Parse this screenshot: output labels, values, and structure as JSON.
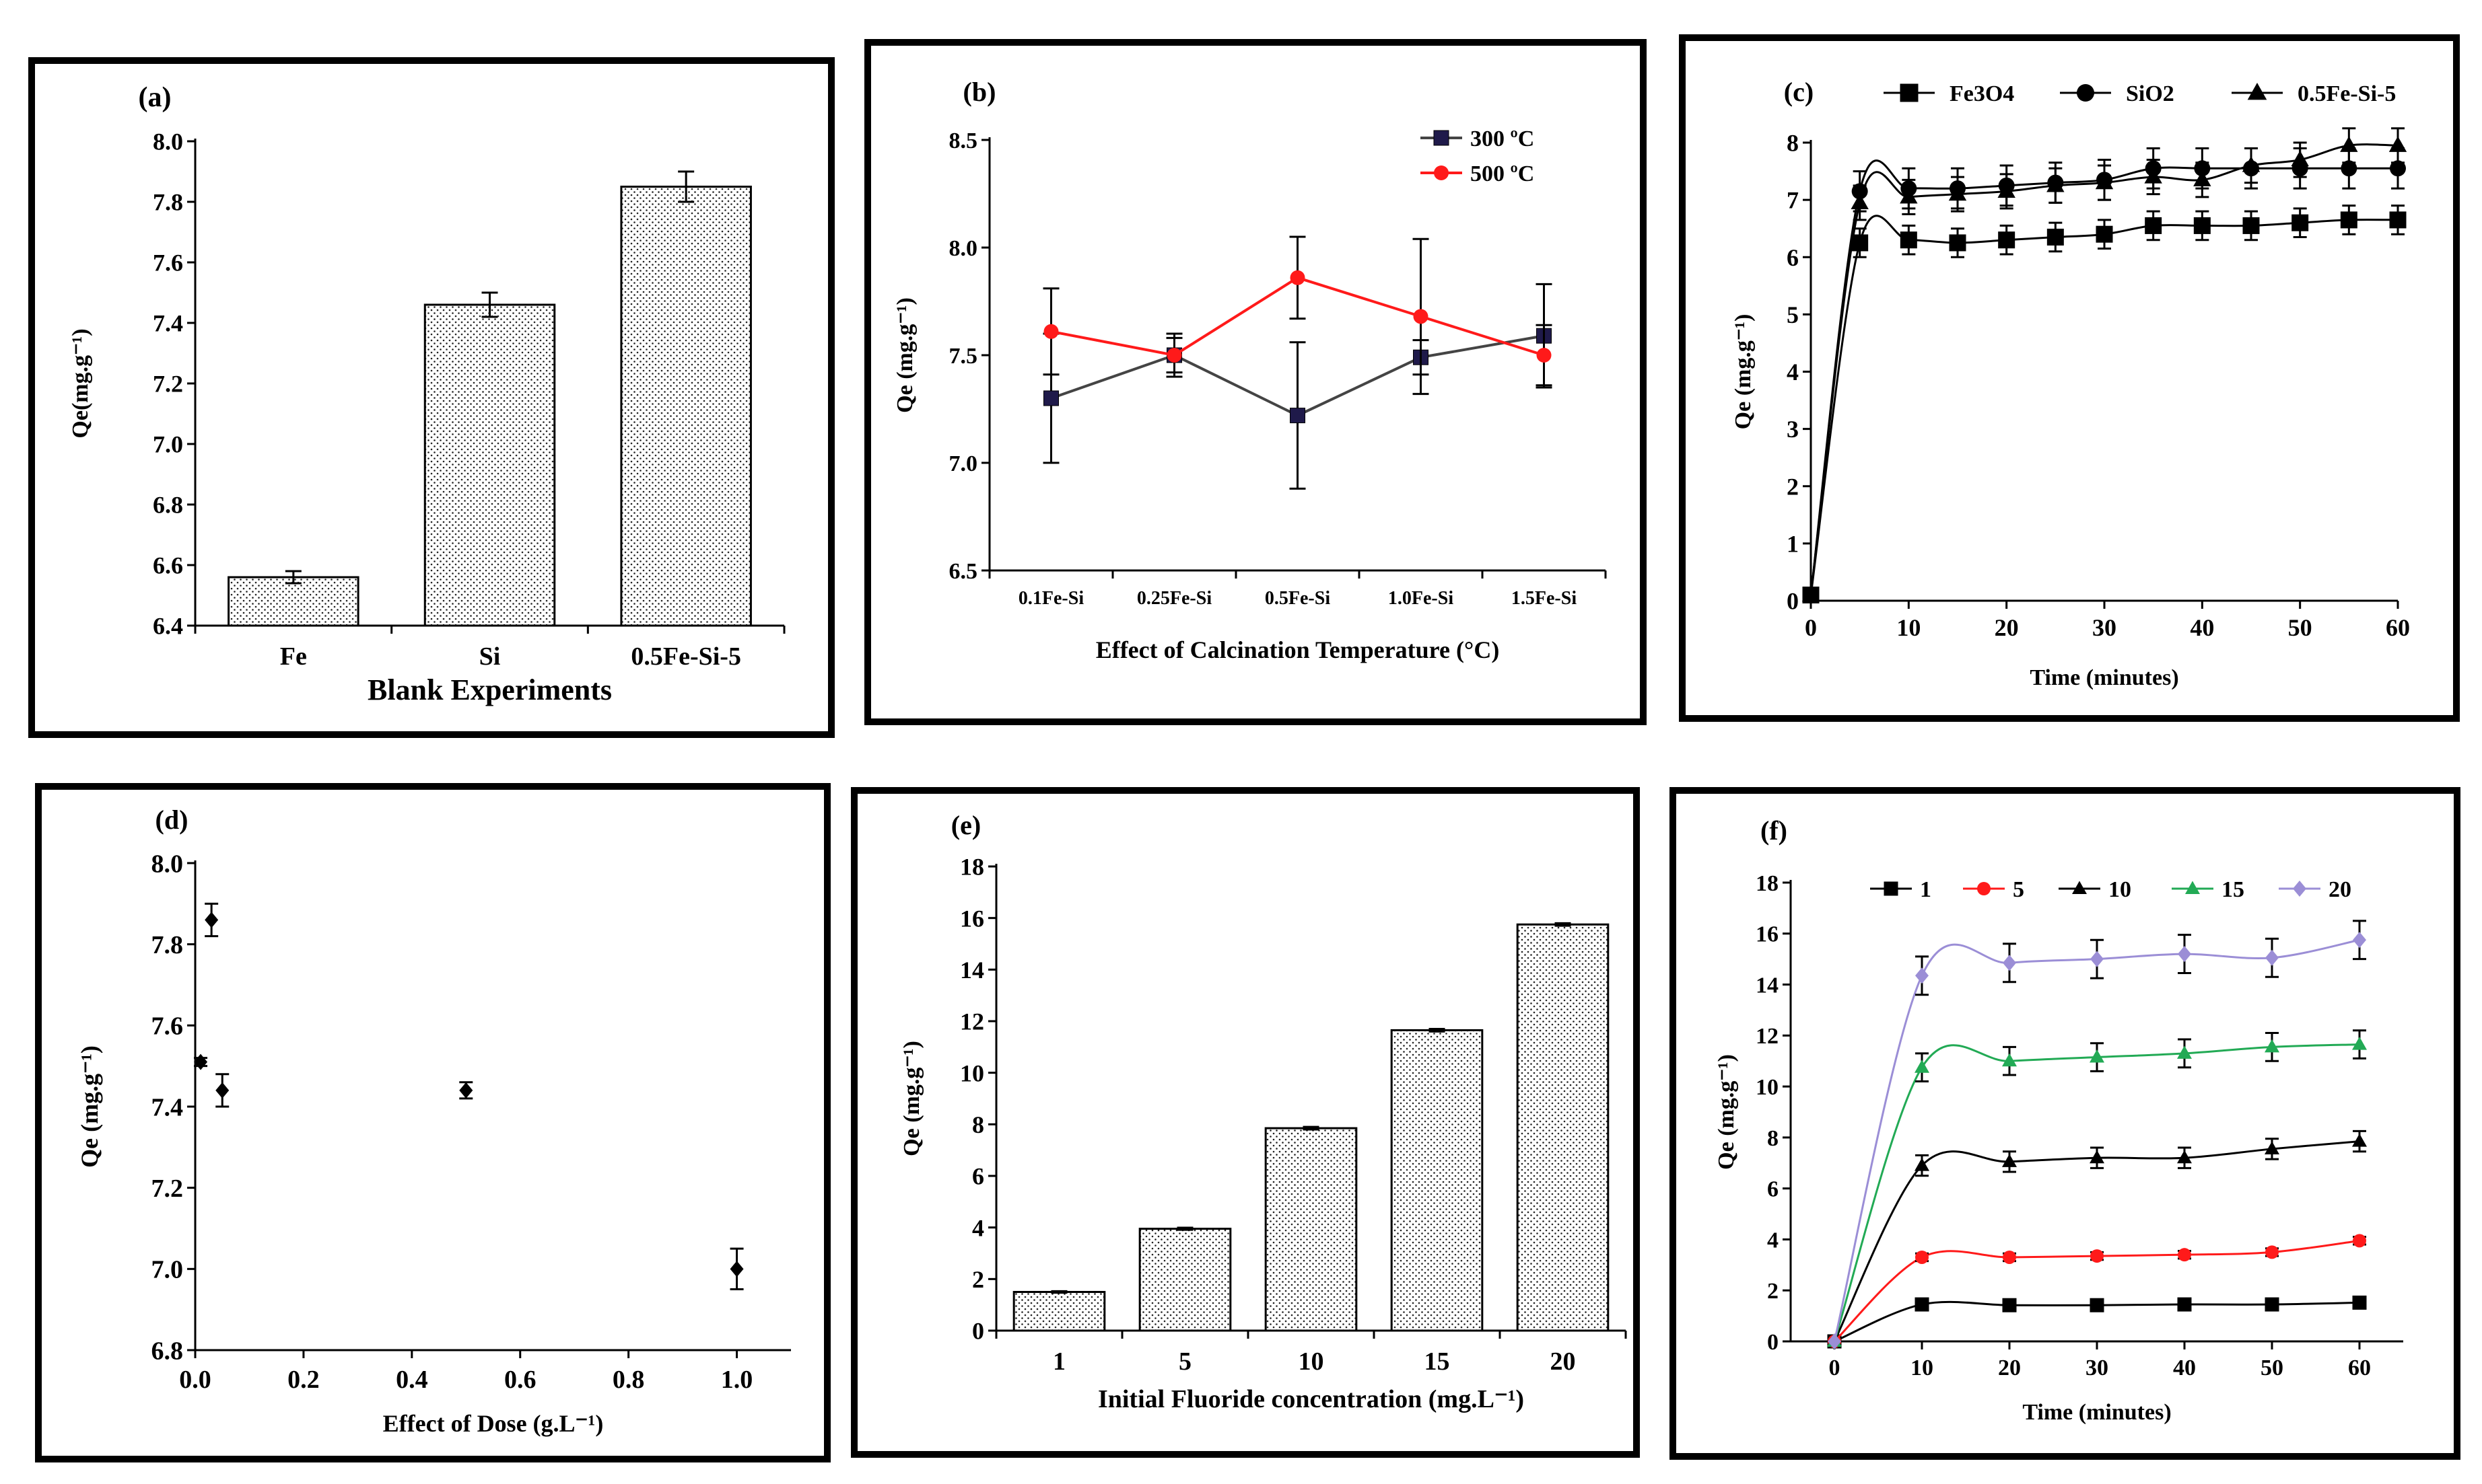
{
  "chart_data": [
    {
      "id": "a",
      "type": "bar",
      "panel_label": "(a)",
      "ylabel": "Qe(mg.g⁻¹)",
      "xlabel": "Blank Experiments",
      "ylim": [
        6.4,
        8.0
      ],
      "yticks": [
        6.4,
        6.6,
        6.8,
        7.0,
        7.2,
        7.4,
        7.6,
        7.8,
        8.0
      ],
      "categories": [
        "Fe",
        "Si",
        "0.5Fe-Si-5"
      ],
      "values": [
        6.56,
        7.46,
        7.85
      ],
      "errors": [
        0.02,
        0.04,
        0.05
      ]
    },
    {
      "id": "b",
      "type": "line",
      "panel_label": "(b)",
      "ylabel": "Qe (mg.g⁻¹)",
      "xlabel": "Effect of Calcination Temperature (°C)",
      "ylim": [
        6.5,
        8.5
      ],
      "yticks": [
        6.5,
        7.0,
        7.5,
        8.0,
        8.5
      ],
      "categories": [
        "0.1Fe-Si",
        "0.25Fe-Si",
        "0.5Fe-Si",
        "1.0Fe-Si",
        "1.5Fe-Si"
      ],
      "legend_position": "top-right",
      "series": [
        {
          "name": "300 ºC",
          "marker": "square",
          "color": "#1f1a4a",
          "values": [
            7.3,
            7.5,
            7.22,
            7.49,
            7.59
          ],
          "errors": [
            0.3,
            0.1,
            0.34,
            0.08,
            0.24
          ]
        },
        {
          "name": "500 ºC",
          "marker": "circle",
          "color": "#ff1a1a",
          "values": [
            7.61,
            7.5,
            7.86,
            7.68,
            7.5
          ],
          "errors": [
            0.2,
            0.08,
            0.19,
            0.36,
            0.14
          ]
        }
      ]
    },
    {
      "id": "c",
      "type": "line",
      "panel_label": "(c)",
      "ylabel": "Qe (mg.g⁻¹)",
      "xlabel": "Time (minutes)",
      "xlim": [
        0,
        60
      ],
      "xticks": [
        0,
        10,
        20,
        30,
        40,
        50,
        60
      ],
      "ylim": [
        0,
        8
      ],
      "yticks": [
        0,
        1,
        2,
        3,
        4,
        5,
        6,
        7,
        8
      ],
      "x": [
        0,
        5,
        10,
        15,
        20,
        25,
        30,
        35,
        40,
        45,
        50,
        55,
        60
      ],
      "legend_position": "top",
      "series": [
        {
          "name": "Fe3O4",
          "marker": "square",
          "color": "#000000",
          "values": [
            0.1,
            6.25,
            6.3,
            6.25,
            6.3,
            6.35,
            6.4,
            6.55,
            6.55,
            6.55,
            6.6,
            6.65,
            6.65
          ],
          "error": 0.25
        },
        {
          "name": "SiO2",
          "marker": "circle",
          "color": "#000000",
          "values": [
            0.1,
            7.15,
            7.2,
            7.2,
            7.25,
            7.3,
            7.35,
            7.55,
            7.55,
            7.55,
            7.55,
            7.55,
            7.55
          ],
          "error": 0.35
        },
        {
          "name": "0.5Fe-Si-5",
          "marker": "triangle",
          "color": "#000000",
          "values": [
            0.1,
            6.95,
            7.05,
            7.1,
            7.15,
            7.25,
            7.3,
            7.4,
            7.35,
            7.6,
            7.7,
            7.95,
            7.95
          ],
          "error": 0.3
        }
      ]
    },
    {
      "id": "d",
      "type": "scatter",
      "panel_label": "(d)",
      "ylabel": "Qe (mg.g⁻¹)",
      "xlabel": "Effect of Dose (g.L⁻¹)",
      "xlim": [
        0,
        1.1
      ],
      "xticks": [
        0.0,
        0.2,
        0.4,
        0.6,
        0.8,
        1.0
      ],
      "ylim": [
        6.8,
        8.0
      ],
      "yticks": [
        6.8,
        7.0,
        7.2,
        7.4,
        7.6,
        7.8,
        8.0
      ],
      "x": [
        0.01,
        0.03,
        0.05,
        0.5,
        1.0
      ],
      "values": [
        7.51,
        7.86,
        7.44,
        7.44,
        7.0
      ],
      "errors": [
        0.01,
        0.04,
        0.04,
        0.02,
        0.05
      ]
    },
    {
      "id": "e",
      "type": "bar",
      "panel_label": "(e)",
      "ylabel": "Qe (mg.g⁻¹)",
      "xlabel": "Initial  Fluoride concentration  (mg.L⁻¹)",
      "ylim": [
        0,
        18
      ],
      "yticks": [
        0,
        2,
        4,
        6,
        8,
        10,
        12,
        14,
        16,
        18
      ],
      "categories": [
        "1",
        "5",
        "10",
        "15",
        "20"
      ],
      "values": [
        1.5,
        3.95,
        7.85,
        11.65,
        15.75
      ],
      "errors": [
        0.03,
        0.04,
        0.05,
        0.05,
        0.05
      ]
    },
    {
      "id": "f",
      "type": "line",
      "panel_label": "(f)",
      "ylabel": "Qe (mg.g⁻¹)",
      "xlabel": "Time (minutes)",
      "xlim": [
        -5,
        65
      ],
      "xticks": [
        0,
        10,
        20,
        30,
        40,
        50,
        60
      ],
      "ylim": [
        0,
        18
      ],
      "yticks": [
        0,
        2,
        4,
        6,
        8,
        10,
        12,
        14,
        16,
        18
      ],
      "x": [
        0,
        10,
        20,
        30,
        40,
        50,
        60
      ],
      "legend_position": "top",
      "series": [
        {
          "name": "1",
          "marker": "square",
          "color": "#000000",
          "values": [
            0,
            1.45,
            1.42,
            1.42,
            1.45,
            1.45,
            1.52
          ],
          "error": 0.1
        },
        {
          "name": "5",
          "marker": "circle",
          "color": "#ff1a1a",
          "values": [
            0,
            3.3,
            3.3,
            3.35,
            3.4,
            3.5,
            3.95
          ],
          "error": 0.15
        },
        {
          "name": "10",
          "marker": "triangle",
          "color": "#000000",
          "values": [
            0,
            6.9,
            7.05,
            7.2,
            7.2,
            7.55,
            7.85
          ],
          "error": 0.4
        },
        {
          "name": "15",
          "marker": "triangle",
          "color": "#22aa55",
          "values": [
            0,
            10.75,
            11.0,
            11.15,
            11.3,
            11.55,
            11.65
          ],
          "error": 0.55
        },
        {
          "name": "20",
          "marker": "diamond",
          "color": "#9b8ed6",
          "values": [
            0,
            14.35,
            14.85,
            15.0,
            15.2,
            15.05,
            15.75
          ],
          "error": 0.75
        }
      ]
    }
  ]
}
